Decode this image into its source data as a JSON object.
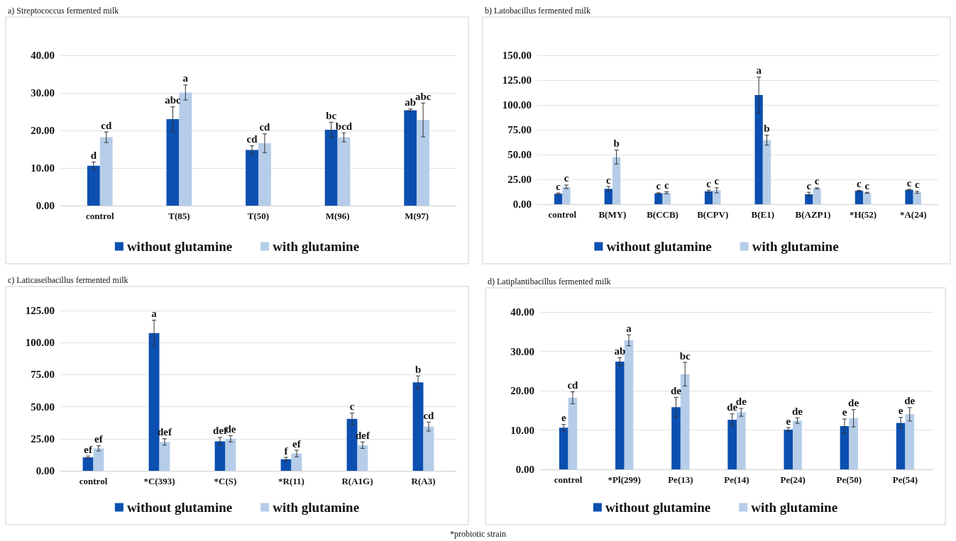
{
  "chart_data": [
    {
      "type": "bar",
      "title": "a) Streptococcus fermented milk",
      "categories": [
        "control",
        "T(85)",
        "T(50)",
        "M(96)",
        "M(97)"
      ],
      "series": [
        {
          "name": "without glutamine",
          "color": "#0b4fb0",
          "values": [
            10.6,
            23.0,
            14.8,
            20.2,
            25.4
          ],
          "errors": [
            1.0,
            3.3,
            1.1,
            2.0,
            0.3
          ],
          "value_labels": [
            "d",
            "abc",
            "cd",
            "bc",
            "ab"
          ]
        },
        {
          "name": "with glutamine",
          "color": "#b5cde9",
          "values": [
            18.2,
            30.1,
            16.6,
            18.2,
            22.8
          ],
          "errors": [
            1.4,
            2.0,
            2.5,
            1.2,
            4.5
          ],
          "value_labels": [
            "cd",
            "a",
            "cd",
            "bcd",
            "abc"
          ]
        }
      ],
      "ylim": [
        0,
        40
      ],
      "yticks": [
        {
          "value": 0,
          "label": "0.00"
        },
        {
          "value": 10,
          "label": "10.00"
        },
        {
          "value": 20,
          "label": "20.00"
        },
        {
          "value": 30,
          "label": "30.00"
        },
        {
          "value": 40,
          "label": "40.00"
        }
      ],
      "grid": "y",
      "legend": "bottom"
    },
    {
      "type": "bar",
      "title": "b) Latobacillus fermented milk",
      "categories": [
        "control",
        "B(MY)",
        "B(CCB)",
        "B(CPV)",
        "B(E1)",
        "B(AZP1)",
        "*H(52)",
        "*A(24)"
      ],
      "series": [
        {
          "name": "without glutamine",
          "color": "#0b4fb0",
          "values": [
            10.5,
            15.5,
            11,
            13,
            110,
            10,
            13.5,
            14.5
          ],
          "errors": [
            0.8,
            2.3,
            0.5,
            1,
            18,
            2,
            0.5,
            0.5
          ],
          "value_labels": [
            "c",
            "c",
            "c",
            "c",
            "a",
            "c",
            "c",
            "c"
          ]
        },
        {
          "name": "with glutamine",
          "color": "#b5cde9",
          "values": [
            17.5,
            47.5,
            11.5,
            14,
            64.5,
            16,
            11.5,
            12
          ],
          "errors": [
            1.8,
            7,
            1,
            2.5,
            5,
            0.5,
            0.5,
            1
          ],
          "value_labels": [
            "c",
            "b",
            "c",
            "c",
            "b",
            "c",
            "c",
            "c"
          ]
        }
      ],
      "ylim": [
        0,
        150
      ],
      "yticks": [
        {
          "value": 0,
          "label": "0.00"
        },
        {
          "value": 25,
          "label": "25.00"
        },
        {
          "value": 50,
          "label": "50.00"
        },
        {
          "value": 75,
          "label": "75.00"
        },
        {
          "value": 100,
          "label": "100.00"
        },
        {
          "value": 125,
          "label": "125.00"
        },
        {
          "value": 150,
          "label": "150.00"
        }
      ],
      "grid": "y",
      "legend": "bottom"
    },
    {
      "type": "bar",
      "title": "c) Laticaseibacillus fermented milk",
      "categories": [
        "control",
        "*C(393)",
        "*C(S)",
        "*R(11)",
        "R(A1G)",
        "R(A3)"
      ],
      "series": [
        {
          "name": "without glutamine",
          "color": "#0b4fb0",
          "values": [
            10.5,
            107.5,
            23,
            9,
            40.5,
            69
          ],
          "errors": [
            1,
            10,
            3,
            1.5,
            4.5,
            5
          ],
          "value_labels": [
            "ef",
            "a",
            "def",
            "f",
            "c",
            "b"
          ]
        },
        {
          "name": "with glutamine",
          "color": "#b5cde9",
          "values": [
            17.5,
            22.5,
            25,
            13.5,
            20,
            34.5
          ],
          "errors": [
            2,
            2.5,
            2.5,
            2.5,
            2.5,
            3.5
          ],
          "value_labels": [
            "ef",
            "def",
            "de",
            "ef",
            "def",
            "cd"
          ]
        }
      ],
      "ylim": [
        0,
        125
      ],
      "yticks": [
        {
          "value": 0,
          "label": "0.00"
        },
        {
          "value": 25,
          "label": "25.00"
        },
        {
          "value": 50,
          "label": "50.00"
        },
        {
          "value": 75,
          "label": "75.00"
        },
        {
          "value": 100,
          "label": "100.00"
        },
        {
          "value": 125,
          "label": "125.00"
        }
      ],
      "grid": "y",
      "legend": "bottom"
    },
    {
      "type": "bar",
      "title": "d) Latiplantibacillus fermented milk",
      "categories": [
        "control",
        "*Pl(299)",
        "Pe(13)",
        "Pe(14)",
        "Pe(24)",
        "Pe(50)",
        "Pe(54)"
      ],
      "series": [
        {
          "name": "without glutamine",
          "color": "#0b4fb0",
          "values": [
            10.6,
            27.4,
            15.8,
            12.6,
            10.1,
            11.0,
            11.8
          ],
          "errors": [
            0.8,
            1.0,
            2.5,
            1.5,
            0.5,
            1.8,
            1.4
          ],
          "value_labels": [
            "e",
            "ab",
            "de",
            "de",
            "e",
            "e",
            "e"
          ]
        },
        {
          "name": "with glutamine",
          "color": "#b5cde9",
          "values": [
            18.2,
            32.8,
            24.2,
            14.5,
            12.4,
            13.0,
            14.0
          ],
          "errors": [
            1.5,
            1.4,
            3.0,
            1.0,
            0.7,
            2.2,
            1.7
          ],
          "value_labels": [
            "cd",
            "a",
            "bc",
            "de",
            "de",
            "de",
            "de"
          ]
        }
      ],
      "ylim": [
        0,
        40
      ],
      "yticks": [
        {
          "value": 0,
          "label": "0.00"
        },
        {
          "value": 10,
          "label": "10.00"
        },
        {
          "value": 20,
          "label": "20.00"
        },
        {
          "value": 30,
          "label": "30.00"
        },
        {
          "value": 40,
          "label": "40.00"
        }
      ],
      "grid": "y",
      "legend": "bottom",
      "annotations": [
        "*probiotic strain"
      ]
    }
  ]
}
